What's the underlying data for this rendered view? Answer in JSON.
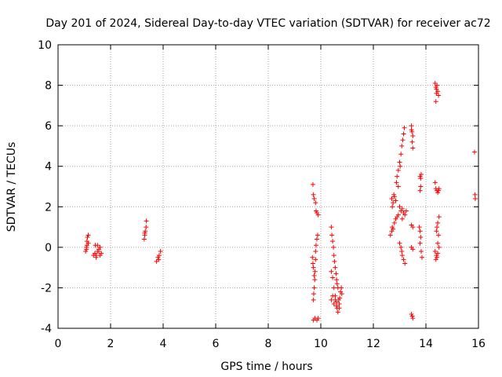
{
  "chart_data": {
    "type": "scatter",
    "title": "Day 201 of 2024, Sidereal Day-to-day VTEC variation (SDTVAR) for receiver ac72",
    "xlabel": "GPS time / hours",
    "ylabel": "SDTVAR / TECUs",
    "xlim": [
      0,
      16
    ],
    "ylim": [
      -4,
      10
    ],
    "xticks": [
      0,
      2,
      4,
      6,
      8,
      10,
      12,
      14,
      16
    ],
    "yticks": [
      -4,
      -2,
      0,
      2,
      4,
      6,
      8,
      10
    ],
    "xtick_labels": [
      "0",
      "2",
      "4",
      "6",
      "8",
      "10",
      "12",
      "14",
      "16"
    ],
    "ytick_labels": [
      "-4",
      "-2",
      "0",
      "2",
      "4",
      "6",
      "8",
      "10"
    ],
    "grid": true,
    "marker": "+",
    "color": "#ff0000",
    "series": [
      {
        "name": "SDTVAR",
        "points": [
          [
            1.05,
            -0.2
          ],
          [
            1.08,
            0.0
          ],
          [
            1.1,
            0.3
          ],
          [
            1.12,
            0.5
          ],
          [
            1.15,
            0.6
          ],
          [
            1.1,
            0.1
          ],
          [
            1.08,
            -0.1
          ],
          [
            1.15,
            0.2
          ],
          [
            1.35,
            -0.4
          ],
          [
            1.4,
            -0.3
          ],
          [
            1.42,
            0.1
          ],
          [
            1.45,
            -0.5
          ],
          [
            1.5,
            -0.2
          ],
          [
            1.55,
            -0.1
          ],
          [
            1.6,
            0.0
          ],
          [
            1.65,
            -0.3
          ],
          [
            1.5,
            0.1
          ],
          [
            1.45,
            -0.4
          ],
          [
            1.6,
            -0.4
          ],
          [
            1.55,
            -0.2
          ],
          [
            3.28,
            0.4
          ],
          [
            3.3,
            0.6
          ],
          [
            3.32,
            0.8
          ],
          [
            3.35,
            1.0
          ],
          [
            3.36,
            1.3
          ],
          [
            3.3,
            0.7
          ],
          [
            3.75,
            -0.7
          ],
          [
            3.8,
            -0.5
          ],
          [
            3.83,
            -0.6
          ],
          [
            3.85,
            -0.4
          ],
          [
            3.9,
            -0.2
          ],
          [
            9.7,
            3.1
          ],
          [
            9.72,
            2.6
          ],
          [
            9.75,
            2.4
          ],
          [
            9.8,
            2.2
          ],
          [
            9.82,
            1.8
          ],
          [
            9.85,
            1.7
          ],
          [
            9.9,
            1.6
          ],
          [
            9.68,
            -0.5
          ],
          [
            9.7,
            -0.8
          ],
          [
            9.72,
            -1.0
          ],
          [
            9.75,
            -1.4
          ],
          [
            9.77,
            -1.6
          ],
          [
            9.8,
            -0.2
          ],
          [
            9.82,
            0.1
          ],
          [
            9.85,
            0.4
          ],
          [
            9.88,
            0.6
          ],
          [
            9.75,
            -2.0
          ],
          [
            9.73,
            -2.3
          ],
          [
            9.72,
            -2.6
          ],
          [
            9.78,
            -1.2
          ],
          [
            9.8,
            -0.6
          ],
          [
            9.72,
            -3.6
          ],
          [
            9.78,
            -3.5
          ],
          [
            9.85,
            -3.6
          ],
          [
            9.9,
            -3.5
          ],
          [
            10.4,
            1.0
          ],
          [
            10.42,
            0.6
          ],
          [
            10.45,
            0.3
          ],
          [
            10.48,
            0.0
          ],
          [
            10.5,
            -0.4
          ],
          [
            10.52,
            -0.7
          ],
          [
            10.55,
            -1.0
          ],
          [
            10.58,
            -1.3
          ],
          [
            10.6,
            -1.6
          ],
          [
            10.62,
            -1.8
          ],
          [
            10.4,
            -1.2
          ],
          [
            10.45,
            -1.5
          ],
          [
            10.5,
            -2.0
          ],
          [
            10.55,
            -2.4
          ],
          [
            10.6,
            -2.7
          ],
          [
            10.62,
            -3.0
          ],
          [
            10.65,
            -3.2
          ],
          [
            10.7,
            -2.8
          ],
          [
            10.72,
            -2.5
          ],
          [
            10.75,
            -2.2
          ],
          [
            10.78,
            -2.0
          ],
          [
            10.8,
            -2.3
          ],
          [
            10.7,
            -3.0
          ],
          [
            10.6,
            -2.9
          ],
          [
            10.55,
            -2.6
          ],
          [
            10.5,
            -2.8
          ],
          [
            10.45,
            -2.4
          ],
          [
            10.4,
            -2.6
          ],
          [
            10.68,
            -2.6
          ],
          [
            10.65,
            -2.0
          ],
          [
            12.65,
            0.6
          ],
          [
            12.7,
            0.8
          ],
          [
            12.72,
            1.0
          ],
          [
            12.75,
            0.9
          ],
          [
            12.8,
            1.2
          ],
          [
            12.85,
            1.4
          ],
          [
            12.9,
            1.5
          ],
          [
            12.95,
            1.6
          ],
          [
            12.7,
            2.4
          ],
          [
            12.75,
            2.2
          ],
          [
            12.8,
            2.5
          ],
          [
            12.72,
            2.0
          ],
          [
            12.78,
            2.6
          ],
          [
            12.85,
            2.3
          ],
          [
            12.88,
            3.2
          ],
          [
            12.9,
            3.5
          ],
          [
            12.95,
            3.8
          ],
          [
            13.0,
            4.2
          ],
          [
            13.05,
            4.6
          ],
          [
            13.08,
            5.0
          ],
          [
            13.12,
            5.3
          ],
          [
            13.15,
            5.6
          ],
          [
            13.18,
            5.9
          ],
          [
            12.95,
            3.0
          ],
          [
            13.02,
            4.0
          ],
          [
            13.0,
            2.0
          ],
          [
            13.05,
            1.8
          ],
          [
            13.1,
            1.9
          ],
          [
            13.15,
            1.7
          ],
          [
            13.2,
            1.6
          ],
          [
            13.25,
            1.8
          ],
          [
            13.1,
            1.4
          ],
          [
            13.0,
            0.2
          ],
          [
            13.05,
            0.0
          ],
          [
            13.08,
            -0.2
          ],
          [
            13.1,
            -0.4
          ],
          [
            13.15,
            -0.6
          ],
          [
            13.2,
            -0.8
          ],
          [
            13.45,
            6.0
          ],
          [
            13.47,
            5.7
          ],
          [
            13.5,
            5.5
          ],
          [
            13.48,
            5.2
          ],
          [
            13.5,
            4.9
          ],
          [
            13.45,
            5.8
          ],
          [
            13.45,
            1.1
          ],
          [
            13.5,
            1.0
          ],
          [
            13.45,
            0.0
          ],
          [
            13.5,
            -0.1
          ],
          [
            13.48,
            -3.4
          ],
          [
            13.5,
            -3.5
          ],
          [
            13.45,
            -3.3
          ],
          [
            13.78,
            3.5
          ],
          [
            13.8,
            3.4
          ],
          [
            13.82,
            3.6
          ],
          [
            13.8,
            3.0
          ],
          [
            13.78,
            2.8
          ],
          [
            13.75,
            1.0
          ],
          [
            13.78,
            0.8
          ],
          [
            13.8,
            0.5
          ],
          [
            13.82,
            -0.2
          ],
          [
            13.85,
            -0.5
          ],
          [
            13.78,
            0.2
          ],
          [
            14.35,
            8.1
          ],
          [
            14.38,
            7.9
          ],
          [
            14.4,
            7.8
          ],
          [
            14.42,
            8.0
          ],
          [
            14.45,
            7.7
          ],
          [
            14.48,
            7.5
          ],
          [
            14.4,
            7.6
          ],
          [
            14.38,
            7.2
          ],
          [
            14.35,
            3.2
          ],
          [
            14.38,
            2.9
          ],
          [
            14.42,
            2.8
          ],
          [
            14.45,
            2.7
          ],
          [
            14.48,
            2.8
          ],
          [
            14.5,
            2.9
          ],
          [
            14.4,
            0.8
          ],
          [
            14.42,
            1.0
          ],
          [
            14.45,
            1.2
          ],
          [
            14.5,
            1.5
          ],
          [
            14.48,
            0.6
          ],
          [
            14.45,
            0.2
          ],
          [
            14.35,
            -0.2
          ],
          [
            14.4,
            -0.4
          ],
          [
            14.42,
            -0.5
          ],
          [
            14.45,
            -0.3
          ],
          [
            14.5,
            0.0
          ],
          [
            14.38,
            -0.6
          ],
          [
            15.85,
            4.7
          ],
          [
            15.87,
            2.6
          ],
          [
            15.88,
            2.4
          ]
        ]
      }
    ]
  }
}
